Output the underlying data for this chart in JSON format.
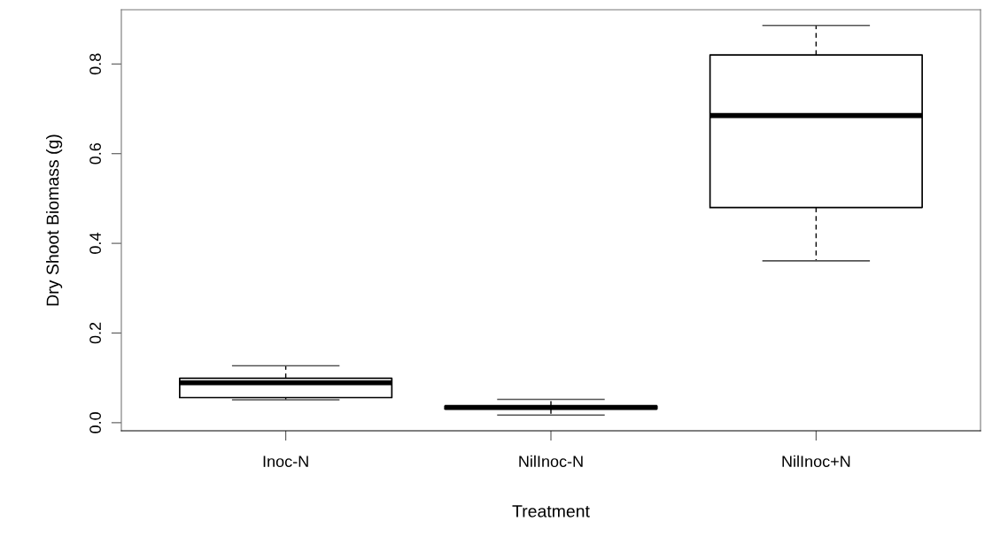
{
  "chart_data": {
    "type": "box",
    "xlabel": "Treatment",
    "ylabel": "Dry Shoot Biomass (g)",
    "categories": [
      "Inoc-N",
      "NilInoc-N",
      "NilInoc+N"
    ],
    "boxes": [
      {
        "low": 0.051,
        "q1": 0.056,
        "median": 0.089,
        "q3": 0.099,
        "high": 0.127
      },
      {
        "low": 0.017,
        "q1": 0.031,
        "median": 0.034,
        "q3": 0.037,
        "high": 0.052
      },
      {
        "low": 0.361,
        "q1": 0.48,
        "median": 0.685,
        "q3": 0.82,
        "high": 0.886
      }
    ],
    "ylim": [
      -0.018,
      0.921
    ],
    "yticks": [
      {
        "value": 0,
        "label": "0.0"
      },
      {
        "value": 0.2,
        "label": "0.2"
      },
      {
        "value": 0.4,
        "label": "0.4"
      },
      {
        "value": 0.6,
        "label": "0.6"
      },
      {
        "value": 0.8,
        "label": "0.8"
      }
    ]
  }
}
